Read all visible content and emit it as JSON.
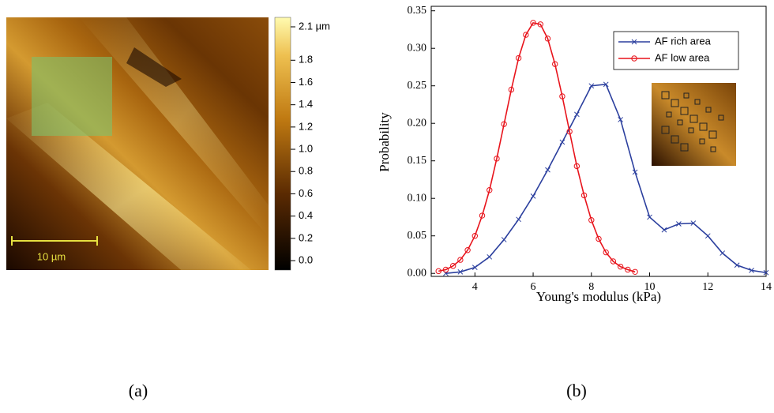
{
  "chart_data": [
    {
      "type": "image",
      "scale_bar_label": "10 µm",
      "panel_label": "(a)",
      "colorbar_lim": [
        -0.085,
        2.185
      ],
      "colorbar_ticks": [
        {
          "value": 2.1,
          "label": "2.1 µm"
        },
        1.8,
        1.6,
        1.4,
        1.2,
        {
          "value": 1.0,
          "label": "1.0"
        },
        0.8,
        0.6,
        0.4,
        0.2,
        {
          "value": 0,
          "label": "0.0"
        }
      ]
    },
    {
      "type": "line",
      "panel_label": "(b)",
      "xlabel": "Young's modulus (kPa)",
      "ylabel": "Probability",
      "xlim": [
        2.5,
        14
      ],
      "xticks": [
        4,
        6,
        8,
        10,
        12,
        14
      ],
      "ylim": [
        -0.004,
        0.356
      ],
      "yticks": [
        {
          "value": 0,
          "label": "0.00"
        },
        0.05,
        {
          "value": 0.1,
          "label": "0.10"
        },
        0.15,
        {
          "value": 0.2,
          "label": "0.20"
        },
        0.25,
        {
          "value": 0.3,
          "label": "0.30"
        },
        0.35
      ],
      "legend": "upper right",
      "series": [
        {
          "name": "AF rich area",
          "color": "#2b3f9e",
          "marker": "x",
          "x": [
            3,
            3.5,
            4,
            4.5,
            5,
            5.5,
            6,
            6.5,
            7,
            7.5,
            8,
            8.5,
            9,
            9.5,
            10,
            10.5,
            11,
            11.5,
            12,
            12.5,
            13,
            13.5,
            14
          ],
          "values": [
            0.0,
            0.002,
            0.008,
            0.022,
            0.045,
            0.072,
            0.103,
            0.138,
            0.175,
            0.212,
            0.25,
            0.252,
            0.205,
            0.135,
            0.075,
            0.058,
            0.066,
            0.067,
            0.05,
            0.027,
            0.011,
            0.004,
            0.001
          ]
        },
        {
          "name": "AF low area",
          "color": "#e8141c",
          "marker": "o",
          "x": [
            2.75,
            3,
            3.25,
            3.5,
            3.75,
            4,
            4.25,
            4.5,
            4.75,
            5,
            5.25,
            5.5,
            5.75,
            6,
            6.25,
            6.5,
            6.75,
            7,
            7.25,
            7.5,
            7.75,
            8,
            8.25,
            8.5,
            8.75,
            9,
            9.25,
            9.5
          ],
          "values": [
            0.003,
            0.005,
            0.01,
            0.018,
            0.031,
            0.05,
            0.077,
            0.111,
            0.153,
            0.199,
            0.245,
            0.287,
            0.318,
            0.334,
            0.332,
            0.313,
            0.279,
            0.236,
            0.189,
            0.143,
            0.104,
            0.071,
            0.046,
            0.028,
            0.016,
            0.009,
            0.005,
            0.002
          ]
        }
      ]
    }
  ]
}
